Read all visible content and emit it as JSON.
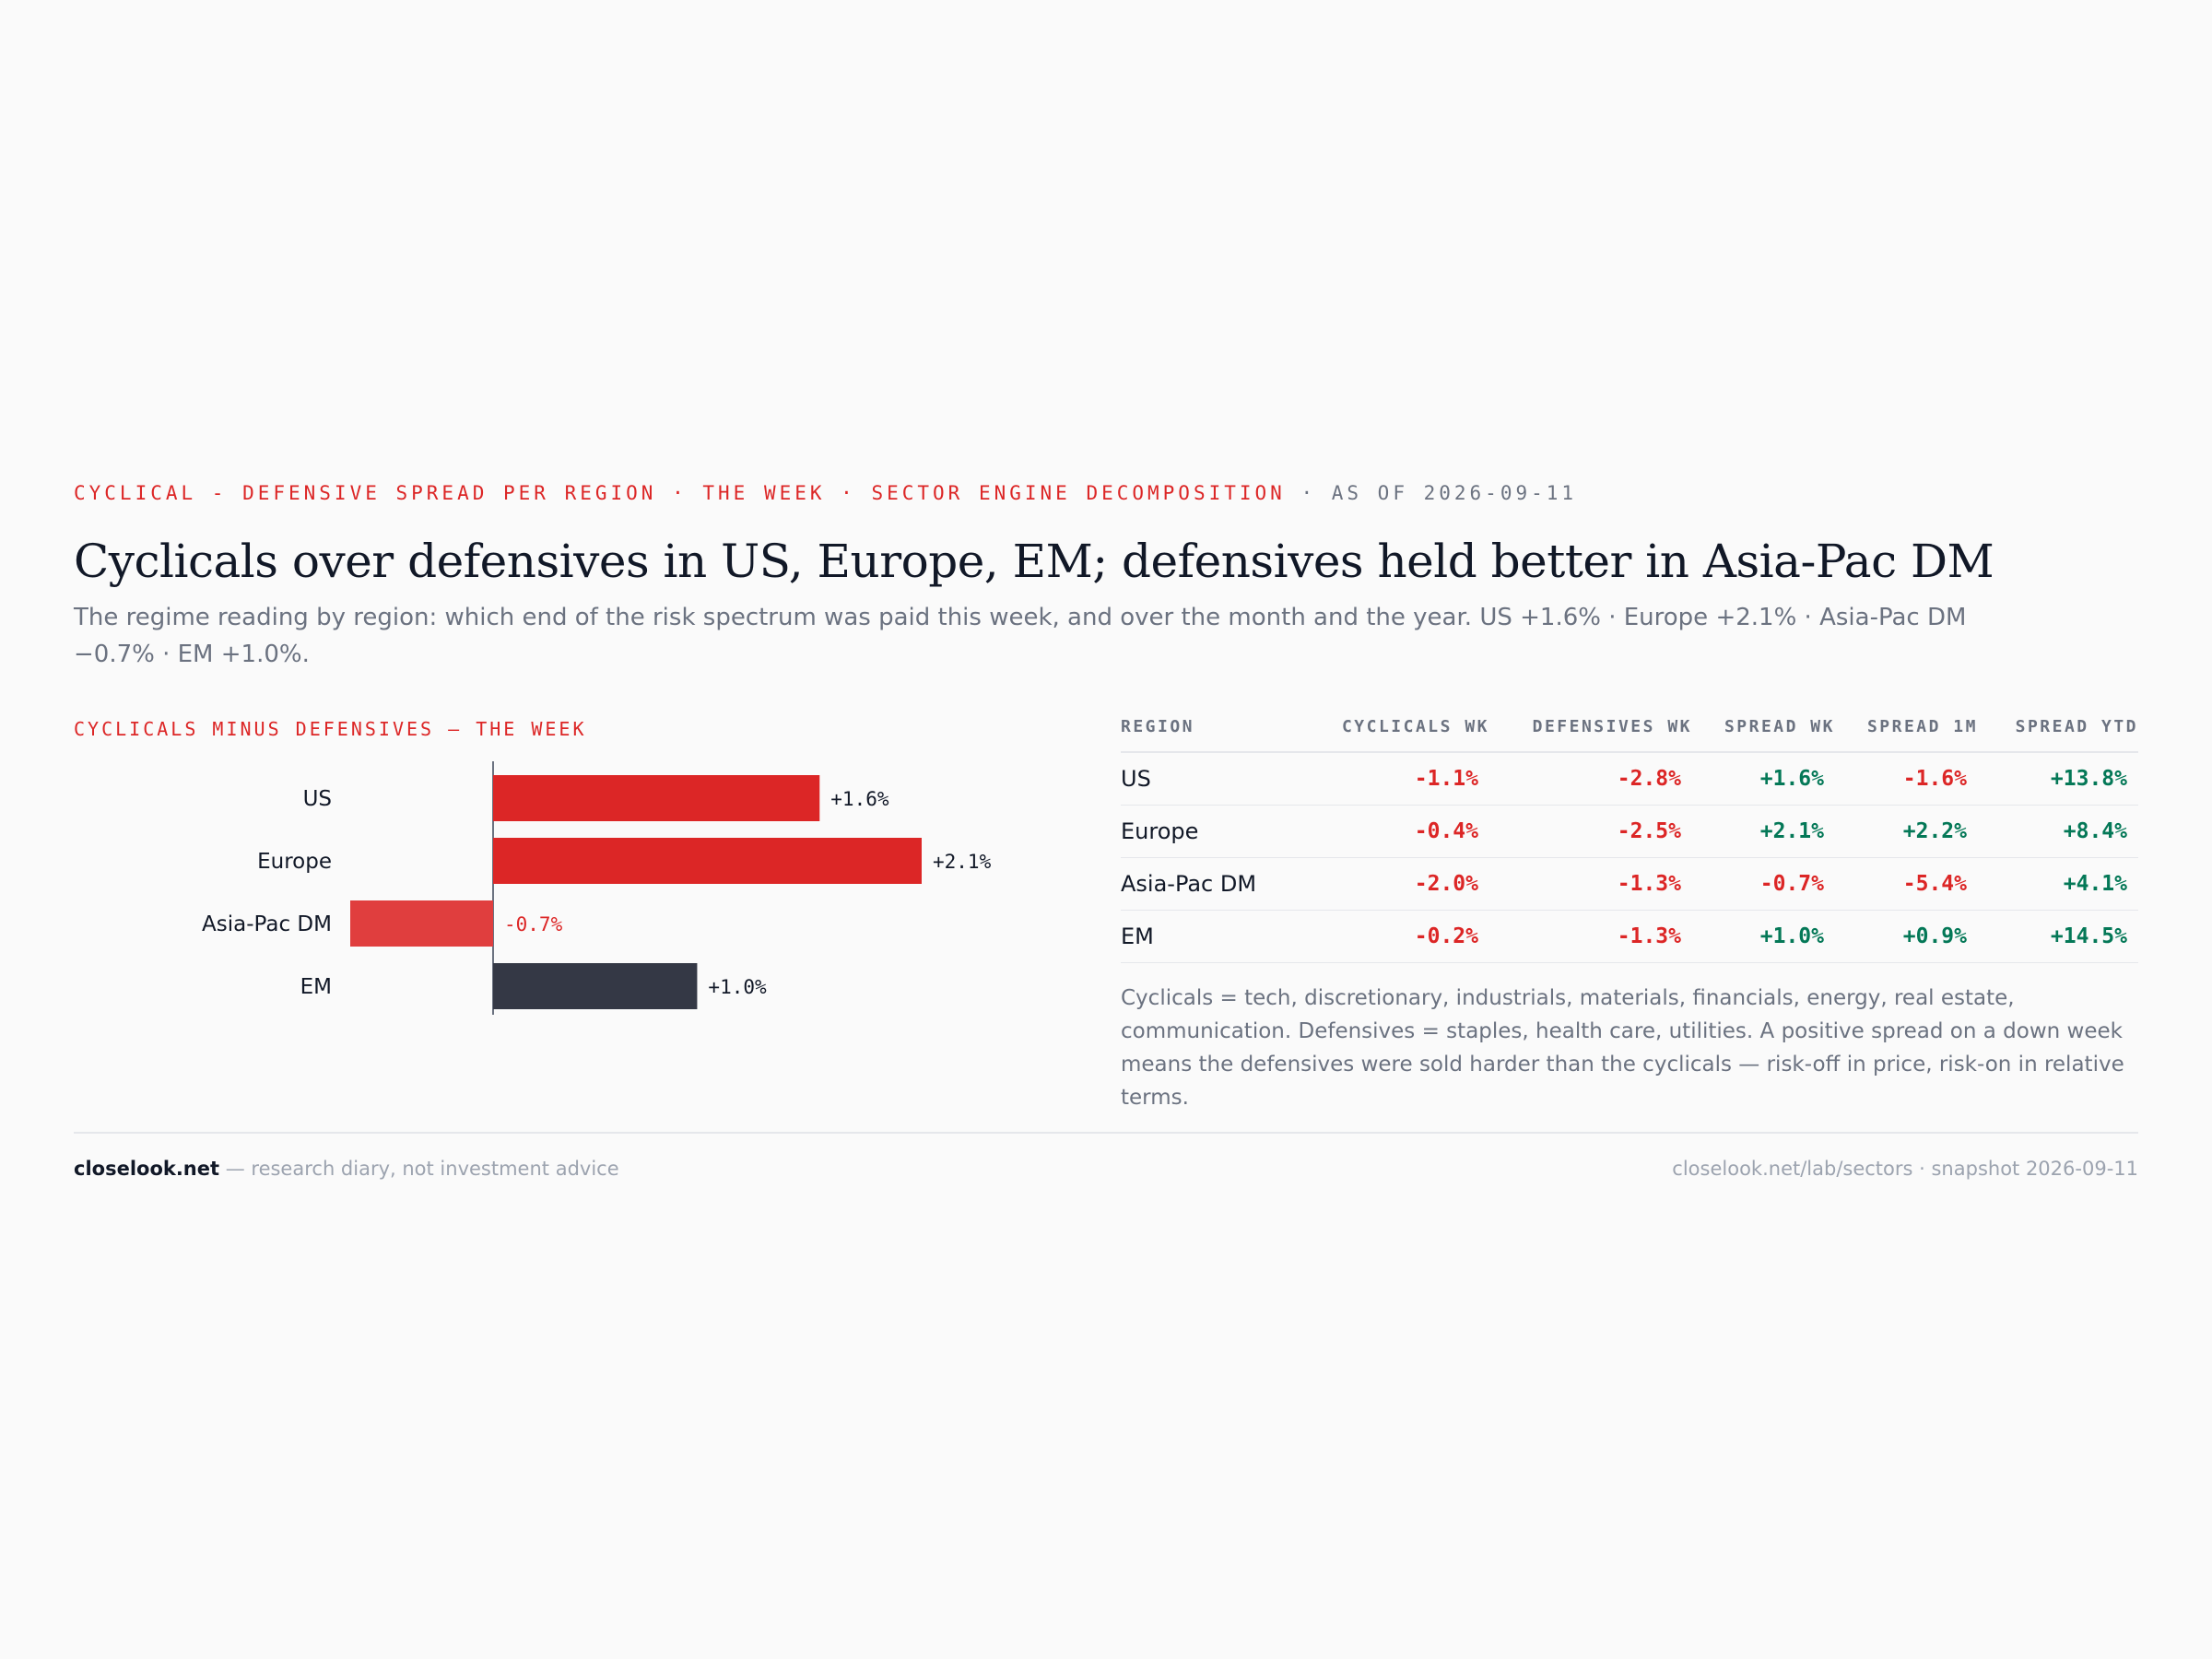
{
  "header": {
    "kicker_red": "CYCLICAL - DEFENSIVE SPREAD PER REGION · THE WEEK · SECTOR ENGINE DECOMPOSITION",
    "kicker_gray": " · AS OF 2026-09-11",
    "title": "Cyclicals over defensives in US, Europe, EM; defensives held better in Asia-Pac DM",
    "subtitle": "The regime reading by region: which end of the risk spectrum was paid this week, and over the month and the year. US +1.6% · Europe +2.1% · Asia-Pac DM −0.7% · EM +1.0%."
  },
  "colors": {
    "accent_red": "#dc2626",
    "negative_bar": "#e03e3e",
    "dark_bar": "#343845",
    "positive_green": "#047857",
    "muted": "#6b7280"
  },
  "chart_data": {
    "type": "bar",
    "orientation": "horizontal",
    "title": "CYCLICALS MINUS DEFENSIVES — THE WEEK",
    "categories": [
      "US",
      "Europe",
      "Asia-Pac DM",
      "EM"
    ],
    "values": [
      1.6,
      2.1,
      -0.7,
      1.0
    ],
    "value_labels": [
      "+1.6%",
      "+2.1%",
      "-0.7%",
      "+1.0%"
    ],
    "bar_colors": [
      "#dc2626",
      "#dc2626",
      "#e03e3e",
      "#343845"
    ],
    "label_colors": [
      "#111827",
      "#111827",
      "#dc2626",
      "#111827"
    ],
    "xlim": [
      -0.7,
      2.1
    ],
    "grid": false
  },
  "table": {
    "headers": [
      "REGION",
      "CYCLICALS WK",
      "DEFENSIVES WK",
      "SPREAD WK",
      "SPREAD 1M",
      "SPREAD YTD"
    ],
    "rows": [
      [
        "US",
        "-1.1%",
        "-2.8%",
        "+1.6%",
        "-1.6%",
        "+13.8%"
      ],
      [
        "Europe",
        "-0.4%",
        "-2.5%",
        "+2.1%",
        "+2.2%",
        "+8.4%"
      ],
      [
        "Asia-Pac DM",
        "-2.0%",
        "-1.3%",
        "-0.7%",
        "-5.4%",
        "+4.1%"
      ],
      [
        "EM",
        "-0.2%",
        "-1.3%",
        "+1.0%",
        "+0.9%",
        "+14.5%"
      ]
    ],
    "note": "Cyclicals = tech, discretionary, industrials, materials, financials, energy, real estate, communication. Defensives = staples, health care, utilities. A positive spread on a down week means the defensives were sold harder than the cyclicals — risk-off in price, risk-on in relative terms."
  },
  "footer": {
    "brand": "closelook.net",
    "tagline": " — research diary, not investment advice",
    "right": "closelook.net/lab/sectors · snapshot 2026-09-11"
  }
}
